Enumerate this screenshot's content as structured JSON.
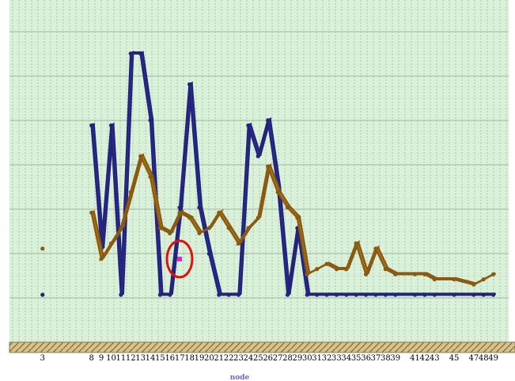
{
  "chart_data": {
    "type": "line",
    "title": "",
    "xlabel": "node",
    "ylabel": "",
    "grid": true,
    "style": "3d-ribbon",
    "ylim": [
      0,
      6
    ],
    "xlim": [
      1,
      50
    ],
    "x_tick_labels": [
      "3",
      "8",
      "9",
      "10",
      "11",
      "12",
      "13",
      "14",
      "15",
      "16",
      "17",
      "18",
      "19",
      "20",
      "21",
      "22",
      "23",
      "24",
      "25",
      "26",
      "27",
      "28",
      "29",
      "30",
      "31",
      "32",
      "33",
      "34",
      "35",
      "36",
      "37",
      "38",
      "39",
      "41",
      "42",
      "43",
      "45",
      "47",
      "48",
      "49"
    ],
    "series": [
      {
        "color": "#3c3cc8",
        "points": [
          [
            3,
            0.8
          ],
          [
            8,
            4.1
          ],
          [
            9,
            1.7
          ],
          [
            10,
            4.1
          ],
          [
            11,
            0.8
          ],
          [
            12,
            5.5
          ],
          [
            13,
            5.5
          ],
          [
            14,
            4.2
          ],
          [
            15,
            0.8
          ],
          [
            16,
            0.8
          ],
          [
            17,
            2.5
          ],
          [
            18,
            4.9
          ],
          [
            19,
            2.5
          ],
          [
            20,
            1.6
          ],
          [
            21,
            0.8
          ],
          [
            22,
            0.8
          ],
          [
            23,
            0.8
          ],
          [
            24,
            4.1
          ],
          [
            25,
            3.5
          ],
          [
            26,
            4.2
          ],
          [
            27,
            2.9
          ],
          [
            28,
            0.8
          ],
          [
            29,
            2.1
          ],
          [
            30,
            0.8
          ],
          [
            31,
            0.8
          ],
          [
            32,
            0.8
          ],
          [
            33,
            0.8
          ],
          [
            34,
            0.8
          ],
          [
            35,
            0.8
          ],
          [
            36,
            0.8
          ],
          [
            37,
            0.8
          ],
          [
            38,
            0.8
          ],
          [
            39,
            0.8
          ],
          [
            41,
            0.8
          ],
          [
            42,
            0.8
          ],
          [
            43,
            0.8
          ],
          [
            45,
            0.8
          ],
          [
            47,
            0.8
          ],
          [
            48,
            0.8
          ],
          [
            49,
            0.8
          ]
        ]
      },
      {
        "color": "#d9a016",
        "points": [
          [
            3,
            1.7
          ],
          [
            8,
            2.4
          ],
          [
            9,
            1.5
          ],
          [
            10,
            1.8
          ],
          [
            11,
            2.1
          ],
          [
            12,
            2.8
          ],
          [
            13,
            3.5
          ],
          [
            14,
            3.1
          ],
          [
            15,
            2.1
          ],
          [
            16,
            2.0
          ],
          [
            17,
            2.4
          ],
          [
            18,
            2.3
          ],
          [
            19,
            2.0
          ],
          [
            20,
            2.1
          ],
          [
            21,
            2.4
          ],
          [
            22,
            2.1
          ],
          [
            23,
            1.8
          ],
          [
            24,
            2.1
          ],
          [
            25,
            2.3
          ],
          [
            26,
            3.3
          ],
          [
            27,
            2.8
          ],
          [
            28,
            2.5
          ],
          [
            29,
            2.3
          ],
          [
            30,
            1.2
          ],
          [
            31,
            1.3
          ],
          [
            32,
            1.4
          ],
          [
            33,
            1.3
          ],
          [
            34,
            1.3
          ],
          [
            35,
            1.8
          ],
          [
            36,
            1.2
          ],
          [
            37,
            1.7
          ],
          [
            38,
            1.3
          ],
          [
            39,
            1.2
          ],
          [
            41,
            1.2
          ],
          [
            42,
            1.2
          ],
          [
            43,
            1.1
          ],
          [
            45,
            1.1
          ],
          [
            47,
            1.0
          ],
          [
            48,
            1.1
          ],
          [
            49,
            1.2
          ]
        ]
      }
    ],
    "highlight": {
      "x": 18,
      "y": 1.7,
      "marker_color": "#cc33cc",
      "ring_color": "#e01010"
    }
  }
}
